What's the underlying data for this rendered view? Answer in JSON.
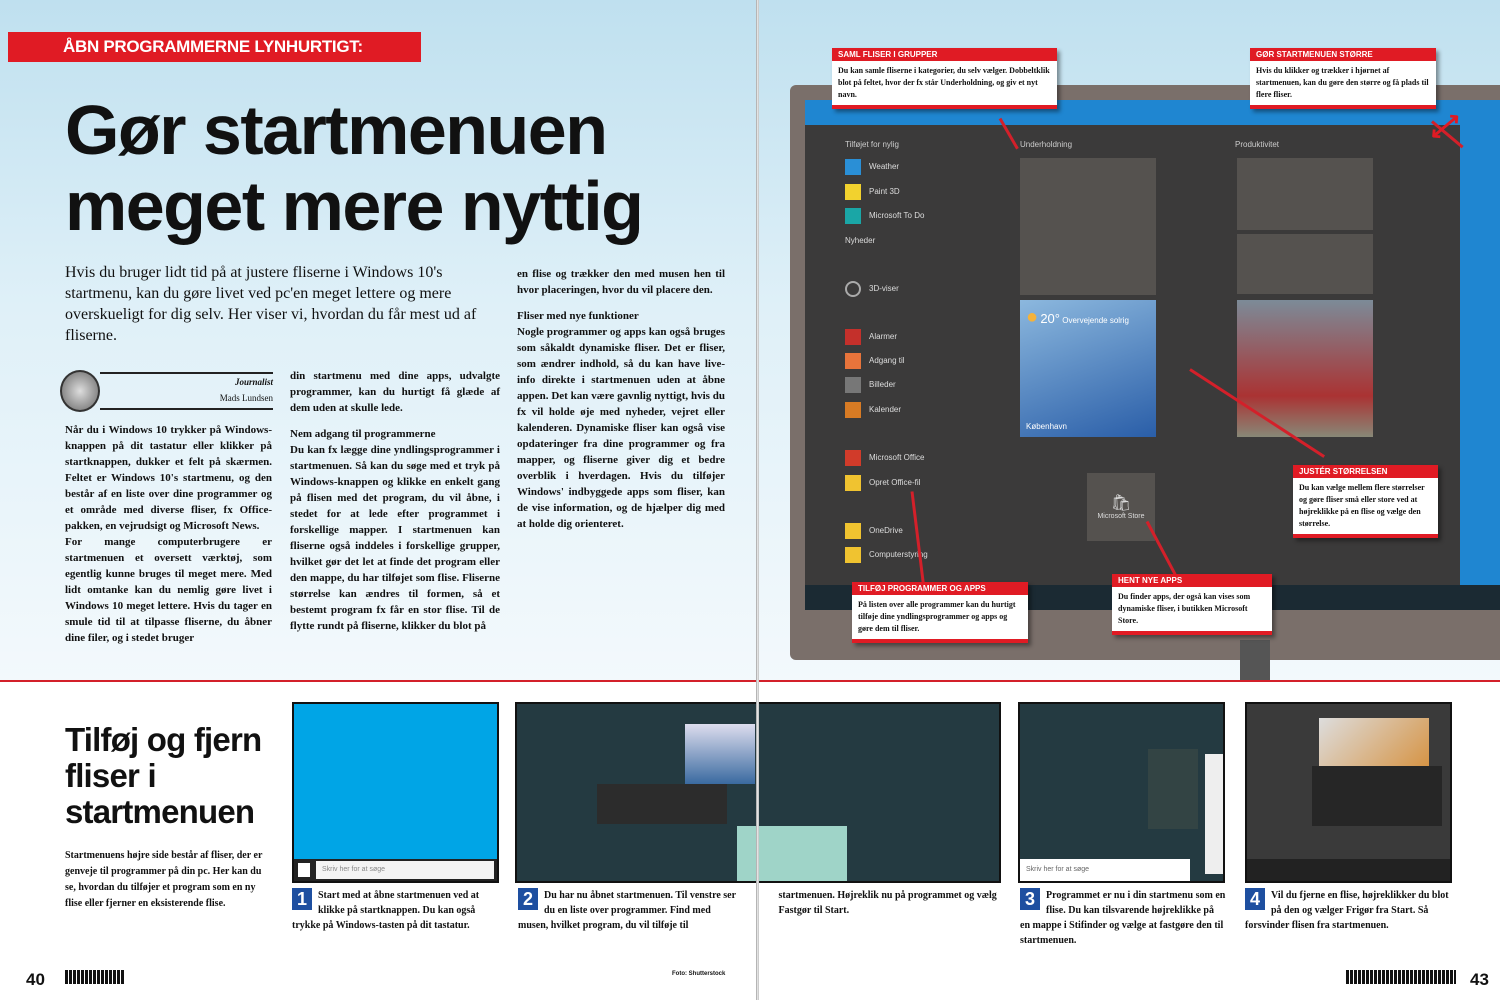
{
  "left_page": {
    "kicker": "ÅBN PROGRAMMERNE LYNHURTIGT:",
    "title_line1": "Gør startmenuen",
    "title_line2": "meget mere nyttig",
    "intro": "Hvis du bruger lidt tid på at justere fliserne i Windows 10's startmenu, kan du gøre livet ved pc'en meget lettere og mere overskueligt for dig selv. Her viser vi, hvordan du får mest ud af fliserne.",
    "author_role": "Journalist",
    "author_name": "Mads Lundsen",
    "col1": "Når du i Windows 10 trykker på Windows-knappen på dit tastatur eller klikker på startknappen, dukker et felt på skærmen. Feltet er Windows 10's startmenu, og den består af en liste over dine programmer og et område med diverse fliser, fx Office-pakken, en vejrudsigt og Microsoft News.\nFor mange computerbrugere er startmenuen et oversett værktøj, som egentlig kunne bruges til meget mere. Med lidt omtanke kan du nemlig gøre livet i Windows 10 meget lettere. Hvis du tager en smule tid til at tilpasse fliserne, du åbner dine filer, og i stedet bruger",
    "col2": "din startmenu med dine apps, udvalgte programmer, kan du hurtigt få glæde af dem uden at skulle lede.",
    "col2_heading": "Nem adgang til programmerne",
    "col2_body": "Du kan fx lægge dine yndlingsprogrammer i startmenuen. Så kan du søge med et tryk på Windows-knappen og klikke en enkelt gang på flisen med det program, du vil åbne, i stedet for at lede efter programmet i forskellige mapper. I startmenuen kan fliserne også inddeles i forskellige grupper, hvilket gør det let at finde det program eller den mappe, du har tilføjet som flise. Fliserne størrelse kan ændres til formen, så et bestemt program fx får en stor flise. Til de flytte rundt på fliserne, klikker du blot på",
    "col3_lead": "en flise og trækker den med musen hen til hvor placeringen, hvor du vil placere den.",
    "col3_heading": "Fliser med nye funktioner",
    "col3_body": "Nogle programmer og apps kan også bruges som såkaldt dynamiske fliser. Det er fliser, som ændrer indhold, så du kan have live-info direkte i startmenuen uden at åbne appen. Det kan være gavnlig nyttigt, hvis du fx vil holde øje med nyheder, vejret eller kalenderen. Dynamiske fliser kan også vise opdateringer fra dine programmer og fra mapper, og fliserne giver dig et bedre overblik i hverdagen. Hvis du tilføjer Windows' indbyggede apps som fliser, kan de vise information, og de hjælper dig med at holde dig orienteret."
  },
  "right_page": {
    "start_menu": {
      "header_left": "Tilføjet for nylig",
      "header_mid": "Underholdning",
      "header_right": "Produktivitet",
      "apps": [
        "Weather",
        "Paint 3D",
        "Microsoft To Do",
        "Nyheder",
        "3D-viser",
        "Alarmer",
        "Adgang til",
        "Billeder",
        "Kalender",
        "Microsoft Office",
        "Opret Office-fil",
        "OneDrive",
        "Computerstyring"
      ],
      "weather_temp": "20°",
      "weather_desc": "Overvejende solrig",
      "weather_city": "København",
      "store_label": "Microsoft Store"
    },
    "callouts": [
      {
        "heading": "SAML FLISER I GRUPPER",
        "body": "Du kan samle fliserne i kategorier, du selv vælger. Dobbeltklik blot på feltet, hvor der fx står Underholdning, og giv et nyt navn."
      },
      {
        "heading": "GØR STARTMENUEN STØRRE",
        "body": "Hvis du klikker og trækker i hjørnet af startmenuen, kan du gøre den større og få plads til flere fliser."
      },
      {
        "heading": "JUSTÉR STØRRELSEN",
        "body": "Du kan vælge mellem flere størrelser og gøre fliser små eller store ved at højreklikke på en flise og vælge den størrelse."
      },
      {
        "heading": "TILFØJ PROGRAMMER OG APPS",
        "body": "På listen over alle programmer kan du hurtigt tilføje dine yndlingsprogrammer og apps og gøre dem til fliser."
      },
      {
        "heading": "HENT NYE APPS",
        "body": "Du finder apps, der også kan vises som dynamiske fliser, i butikken Microsoft Store."
      }
    ]
  },
  "bottom": {
    "title": "Tilføj og fjern fliser i startmenuen",
    "intro": "Startmenuens højre side består af fliser, der er genveje til programmer på din pc. Her kan du se, hvordan du tilføjer et program som en ny flise eller fjerner en eksisterende flise.",
    "steps": [
      {
        "number": "1",
        "text": "Start med at åbne startmenuen ved at klikke på startknappen. Du kan også trykke på Windows-tasten på dit tastatur."
      },
      {
        "number": "2",
        "text": "Du har nu åbnet startmenuen. Til venstre ser du en liste over programmer. Find med musen, hvilket program, du vil tilføje til startmenuen. Højreklik nu på programmet og vælg Fastgør til Start."
      },
      {
        "number": "3",
        "text": "Programmet er nu i din startmenu som en flise. Du kan tilsvarende højreklikke på en mappe i Stifinder og vælge at fastgøre den til startmenuen."
      },
      {
        "number": "4",
        "text": "Vil du fjerne en flise, højreklikker du blot på den og vælger Frigør fra Start. Så forsvinder flisen fra startmenuen."
      }
    ],
    "shot1_search": "Skriv her for at søge",
    "shot3_search": "Skriv her for at søge"
  },
  "footer": {
    "left_page_number": "40",
    "right_page_number": "43",
    "center_credit": "Foto: Shutterstock"
  },
  "colors": {
    "accent_red": "#e01b24",
    "step_blue": "#1e4fa0",
    "windows_blue": "#1f86d1"
  }
}
